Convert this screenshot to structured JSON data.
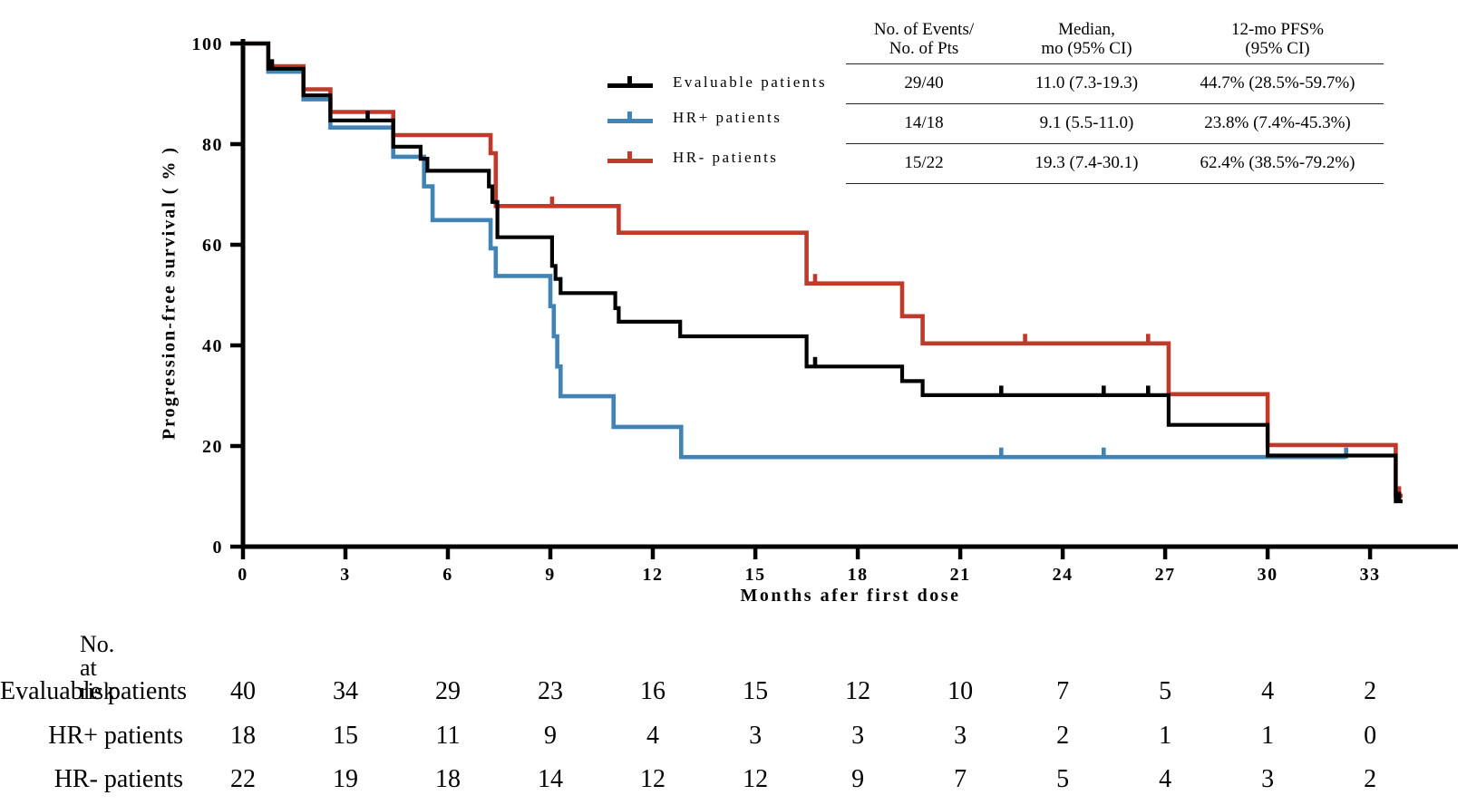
{
  "figure": {
    "background": "#ffffff",
    "colors": {
      "evaluable": "#000000",
      "hr_positive": "#4183b5",
      "hr_negative": "#c03a2b"
    }
  },
  "chart_data": {
    "type": "line",
    "subtype": "kaplan-meier-step",
    "title": "",
    "xlabel": "Months afer first dose",
    "ylabel": "Progression-free survival ( % )",
    "xlim": [
      0,
      35.5
    ],
    "ylim": [
      0,
      100
    ],
    "xticks": [
      0,
      3,
      6,
      9,
      12,
      15,
      18,
      21,
      24,
      27,
      30,
      33
    ],
    "yticks": [
      0,
      20,
      40,
      60,
      80,
      100
    ],
    "grid": false,
    "legend_position": "inside-top-left-of-table",
    "series": [
      {
        "name": "Evaluable patients",
        "color": "#000000",
        "steps": [
          [
            0,
            100
          ],
          [
            0.74,
            95.0
          ],
          [
            1.77,
            89.7
          ],
          [
            2.56,
            84.7
          ],
          [
            4.4,
            79.5
          ],
          [
            5.2,
            77.1
          ],
          [
            5.4,
            74.7
          ],
          [
            7.2,
            71.6
          ],
          [
            7.3,
            68.5
          ],
          [
            7.45,
            61.5
          ],
          [
            9.05,
            55.8
          ],
          [
            9.15,
            53.2
          ],
          [
            9.3,
            50.4
          ],
          [
            10.9,
            47.4
          ],
          [
            11.0,
            44.7
          ],
          [
            12.8,
            41.8
          ],
          [
            16.5,
            35.8
          ],
          [
            19.3,
            32.9
          ],
          [
            19.9,
            30.1
          ],
          [
            27.1,
            24.2
          ],
          [
            30.0,
            18.1
          ],
          [
            33.75,
            9.0
          ]
        ],
        "end": 33.95,
        "censors": [
          [
            0.85,
            95.0
          ],
          [
            3.65,
            84.7
          ],
          [
            16.75,
            35.8
          ],
          [
            22.2,
            30.1
          ],
          [
            25.2,
            30.1
          ],
          [
            26.5,
            30.1
          ],
          [
            33.85,
            9.0
          ]
        ]
      },
      {
        "name": "HR+ patients",
        "color": "#4183b5",
        "steps": [
          [
            0,
            100
          ],
          [
            0.74,
            94.4
          ],
          [
            1.77,
            88.9
          ],
          [
            2.56,
            83.3
          ],
          [
            4.4,
            77.5
          ],
          [
            5.3,
            71.6
          ],
          [
            5.55,
            64.9
          ],
          [
            7.25,
            59.3
          ],
          [
            7.4,
            53.8
          ],
          [
            9.0,
            47.8
          ],
          [
            9.1,
            41.8
          ],
          [
            9.2,
            35.8
          ],
          [
            9.3,
            29.9
          ],
          [
            10.85,
            23.8
          ],
          [
            12.83,
            17.8
          ]
        ],
        "end": 32.3,
        "censors": [
          [
            22.2,
            17.8
          ],
          [
            25.2,
            17.8
          ],
          [
            32.3,
            17.8
          ]
        ]
      },
      {
        "name": "HR- patients",
        "color": "#c03a2b",
        "steps": [
          [
            0,
            100
          ],
          [
            0.74,
            95.5
          ],
          [
            1.77,
            90.9
          ],
          [
            2.56,
            86.4
          ],
          [
            4.4,
            81.8
          ],
          [
            7.25,
            78.2
          ],
          [
            7.4,
            67.7
          ],
          [
            11.0,
            62.4
          ],
          [
            16.5,
            52.3
          ],
          [
            19.3,
            45.8
          ],
          [
            19.9,
            40.4
          ],
          [
            27.1,
            30.3
          ],
          [
            30.0,
            20.2
          ],
          [
            33.75,
            10.1
          ]
        ],
        "end": 33.95,
        "censors": [
          [
            9.05,
            67.7
          ],
          [
            16.75,
            52.3
          ],
          [
            22.9,
            40.4
          ],
          [
            26.5,
            40.4
          ],
          [
            33.85,
            10.1
          ]
        ]
      }
    ]
  },
  "stats_table": {
    "headers": [
      "No. of Events/\nNo. of Pts",
      "Median,\nmo (95% CI)",
      "12-mo PFS%\n(95% CI)"
    ],
    "rows": [
      [
        "29/40",
        "11.0 (7.3-19.3)",
        "44.7% (28.5%-59.7%)"
      ],
      [
        "14/18",
        "9.1 (5.5-11.0)",
        "23.8% (7.4%-45.3%)"
      ],
      [
        "15/22",
        "19.3 (7.4-30.1)",
        "62.4% (38.5%-79.2%)"
      ]
    ]
  },
  "at_risk": {
    "title": "No. at risk",
    "months": [
      0,
      3,
      6,
      9,
      12,
      15,
      18,
      21,
      24,
      27,
      30,
      33
    ],
    "rows": [
      {
        "label": "Evaluable patients",
        "values": [
          40,
          34,
          29,
          23,
          16,
          15,
          12,
          10,
          7,
          5,
          4,
          2
        ]
      },
      {
        "label": "HR+ patients",
        "values": [
          18,
          15,
          11,
          9,
          4,
          3,
          3,
          3,
          2,
          1,
          1,
          0
        ]
      },
      {
        "label": "HR- patients",
        "values": [
          22,
          19,
          18,
          14,
          12,
          12,
          9,
          7,
          5,
          4,
          3,
          2
        ]
      }
    ]
  }
}
